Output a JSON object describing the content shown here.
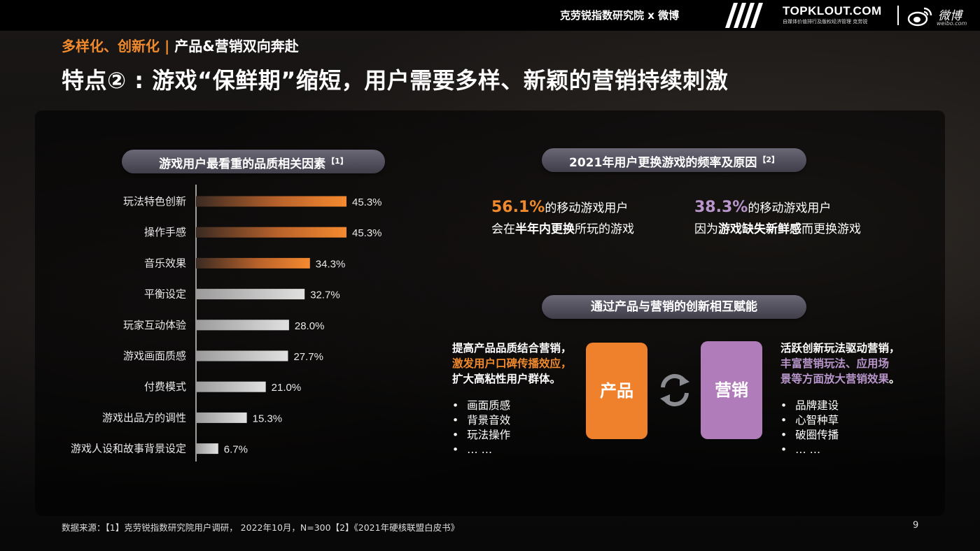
{
  "header": {
    "brand_text": "克劳锐指数研究院 x 微博",
    "topklout_logo": "TOPKLOUT.COM",
    "topklout_tagline": "自媒体价值排行及版权经济管理 克劳锐",
    "weibo_logo": "微博",
    "weibo_domain": "weibo.com"
  },
  "subtitle": {
    "part1": "多样化、创新化",
    "divider": "|",
    "part2": "产品&营销双向奔赴"
  },
  "headline": "特点② : 游戏“保鲜期”缩短，用户需要多样、新颖的营销持续刺激",
  "left_pill": {
    "label": "游戏用户最看重的品质相关因素",
    "ref": "【1】"
  },
  "right_pill": {
    "label": "2021年用户更换游戏的频率及原因",
    "ref": "【2】"
  },
  "middle_pill": {
    "label": "通过产品与营销的创新相互赋能"
  },
  "stats": [
    {
      "pct": "56.1%",
      "line1_rest": "的移动游戏用户",
      "line2_pre": "会在",
      "line2_bold": "半年内更换",
      "line2_post": "所玩的游戏",
      "color": "#f08a2c"
    },
    {
      "pct": "38.3%",
      "line1_rest": "的移动游戏用户",
      "line2_pre": "因为",
      "line2_bold": "游戏缺失新鲜感",
      "line2_post": "而更换游戏",
      "color": "#b896cc"
    }
  ],
  "product": {
    "box_label": "产品",
    "lead_line1": "提高产品品质结合营销，",
    "lead_line2": "激发用户口碑传播效应，",
    "lead_line3": "扩大高粘性用户群体。",
    "bullets": [
      "画面质感",
      "背景音效",
      "玩法操作",
      "… …"
    ]
  },
  "marketing": {
    "box_label": "营销",
    "lead_line1": "活跃创新玩法驱动营销，",
    "lead_line2": "丰富营销玩法、应用场",
    "lead_line3a": "景等方面放大营销效果",
    "lead_line3b": "。",
    "bullets": [
      "品牌建设",
      "心智种草",
      "破圈传播",
      "… …"
    ]
  },
  "chart_data": {
    "type": "bar",
    "orientation": "horizontal",
    "categories": [
      "玩法特色创新",
      "操作手感",
      "音乐效果",
      "平衡设定",
      "玩家互动体验",
      "游戏画面质感",
      "付费模式",
      "游戏出品方的调性",
      "游戏人设和故事背景设定"
    ],
    "values": [
      45.3,
      45.3,
      34.3,
      32.7,
      28.0,
      27.7,
      21.0,
      15.3,
      6.7
    ],
    "value_labels": [
      "45.3%",
      "45.3%",
      "34.3%",
      "32.7%",
      "28.0%",
      "27.7%",
      "21.0%",
      "15.3%",
      "6.7%"
    ],
    "highlight_count": 3,
    "highlight_color": "#f08a2c",
    "normal_color": "#d7d7d7",
    "xlim": [
      0,
      50
    ]
  },
  "footer": {
    "source": "数据来源：【1】克劳锐指数研究院用户调研， 2022年10月，N=300【2】《2021年硬核联盟白皮书》",
    "page": "9"
  }
}
